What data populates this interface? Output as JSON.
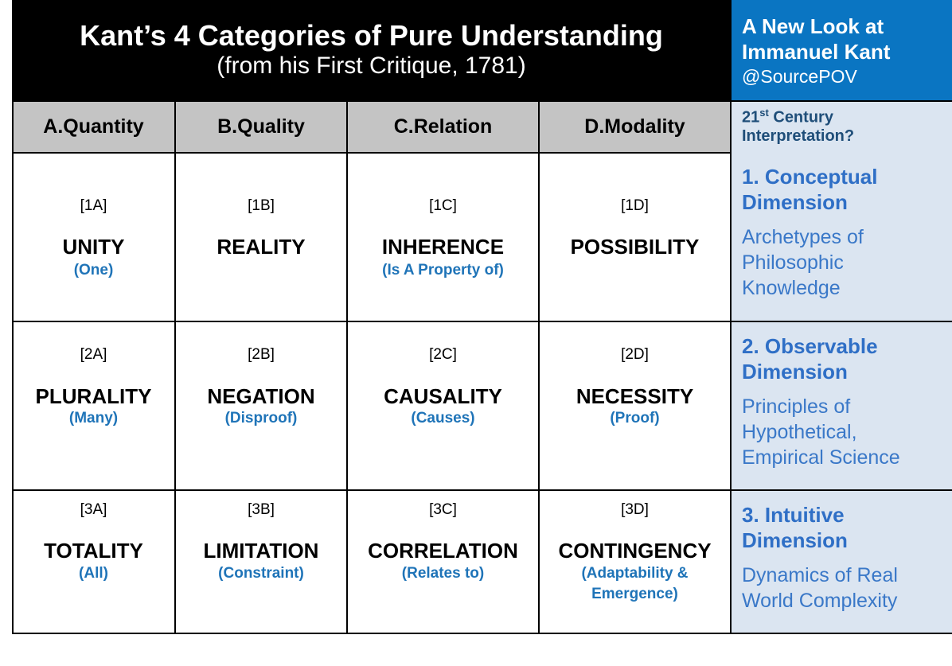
{
  "header": {
    "title": "Kant’s 4 Categories of Pure Understanding",
    "subtitle": "(from his First Critique, 1781)"
  },
  "side_header": {
    "line1": "A New Look at",
    "line2": "Immanuel Kant",
    "handle": "@SourcePOV"
  },
  "columns": [
    "A.Quantity",
    "B.Quality",
    "C.Relation",
    "D.Modality"
  ],
  "side_column": {
    "prefix": "21",
    "superscript": "st",
    "suffix": " Century",
    "line2": "Interpretation?"
  },
  "rows": [
    {
      "cells": [
        {
          "code": "[1A]",
          "term": "UNITY",
          "gloss": "(One)"
        },
        {
          "code": "[1B]",
          "term": "REALITY",
          "gloss": ""
        },
        {
          "code": "[1C]",
          "term": "INHERENCE",
          "gloss": "(Is A Property of)"
        },
        {
          "code": "[1D]",
          "term": "POSSIBILITY",
          "gloss": ""
        }
      ],
      "side": {
        "dim1": "1. Conceptual",
        "dim2": "Dimension",
        "desc": [
          "Archetypes of",
          "Philosophic",
          "Knowledge"
        ]
      }
    },
    {
      "cells": [
        {
          "code": "[2A]",
          "term": "PLURALITY",
          "gloss": "(Many)"
        },
        {
          "code": "[2B]",
          "term": "NEGATION",
          "gloss": "(Disproof)"
        },
        {
          "code": "[2C]",
          "term": "CAUSALITY",
          "gloss": "(Causes)"
        },
        {
          "code": "[2D]",
          "term": "NECESSITY",
          "gloss": "(Proof)"
        }
      ],
      "side": {
        "dim1": "2. Observable",
        "dim2": "Dimension",
        "desc": [
          "Principles of",
          "Hypothetical,",
          "Empirical Science"
        ]
      }
    },
    {
      "cells": [
        {
          "code": "[3A]",
          "term": "TOTALITY",
          "gloss": "(All)"
        },
        {
          "code": "[3B]",
          "term": "LIMITATION",
          "gloss": "(Constraint)"
        },
        {
          "code": "[3C]",
          "term": "CORRELATION",
          "gloss": "(Relates to)"
        },
        {
          "code": "[3D]",
          "term": "CONTINGENCY",
          "gloss": "(Adaptability &",
          "gloss2": "Emergence)"
        }
      ],
      "side": {
        "dim1": "3. Intuitive",
        "dim2": "Dimension",
        "desc": [
          "Dynamics of Real",
          "World Complexity"
        ]
      }
    }
  ],
  "colors": {
    "header_bg": "#000000",
    "side_header_bg": "#0a75c2",
    "column_header_bg": "#c4c4c4",
    "side_panel_bg": "#dbe5f1",
    "gloss_text": "#1f74b8",
    "dimension_text": "#2f6fc6"
  }
}
